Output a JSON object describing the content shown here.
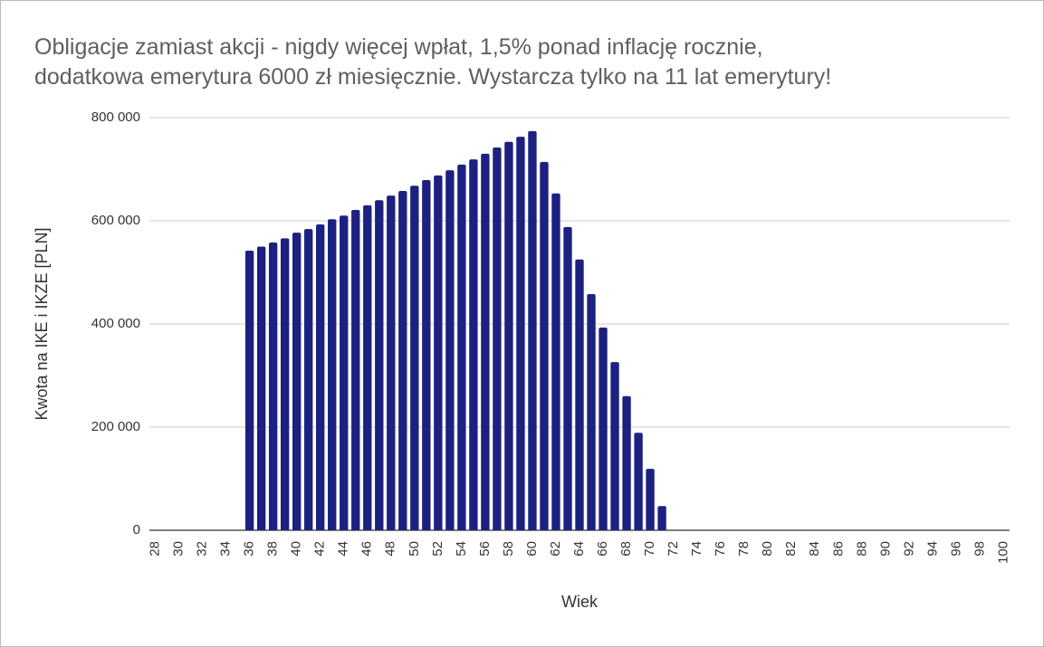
{
  "chart_data": {
    "type": "bar",
    "title": [
      "Obligacje zamiast akcji - nigdy więcej wpłat, 1,5% ponad inflację rocznie,",
      "dodatkowa emerytura 6000 zł miesięcznie. Wystarcza tylko na 11 lat emerytury!"
    ],
    "x_label": "Wiek",
    "y_label": "Kwota na IKE i IKZE [PLN]",
    "categories": [
      "28",
      null,
      "30",
      null,
      "32",
      null,
      "34",
      null,
      "36",
      null,
      "38",
      null,
      "40",
      null,
      "42",
      null,
      "44",
      null,
      "46",
      null,
      "48",
      null,
      "50",
      null,
      "52",
      null,
      "54",
      null,
      "56",
      null,
      "58",
      null,
      "60",
      null,
      "62",
      null,
      "64",
      null,
      "66",
      null,
      "68",
      null,
      "70",
      null,
      "72",
      null,
      "74",
      null,
      "76",
      null,
      "78",
      null,
      "80",
      null,
      "82",
      null,
      "84",
      null,
      "86",
      null,
      "88",
      null,
      "90",
      null,
      "92",
      null,
      "94",
      null,
      "96",
      null,
      "98",
      null,
      "100"
    ],
    "values": [
      0,
      0,
      0,
      0,
      0,
      0,
      0,
      0,
      542000,
      550000,
      558000,
      566000,
      577000,
      584000,
      593000,
      603000,
      610000,
      621000,
      630000,
      640000,
      649000,
      658000,
      668000,
      679000,
      688000,
      698000,
      709000,
      719000,
      730000,
      742000,
      753000,
      763000,
      774000,
      714000,
      653000,
      588000,
      525000,
      458000,
      393000,
      326000,
      260000,
      189000,
      119000,
      47000,
      0,
      0,
      0,
      0,
      0,
      0,
      0,
      0,
      0,
      0,
      0,
      0,
      0,
      0,
      0,
      0,
      0,
      0,
      0,
      0,
      0,
      0,
      0,
      0,
      0,
      0,
      0,
      0,
      0
    ],
    "color": "#1c2181",
    "ylim": [
      0,
      800000
    ],
    "yticks": [
      0,
      {
        "value": 200000,
        "label": "200 000"
      },
      {
        "value": 400000,
        "label": "400 000"
      },
      {
        "value": 600000,
        "label": "600 000"
      },
      {
        "value": 800000,
        "label": "800 000"
      }
    ],
    "grid": true
  }
}
